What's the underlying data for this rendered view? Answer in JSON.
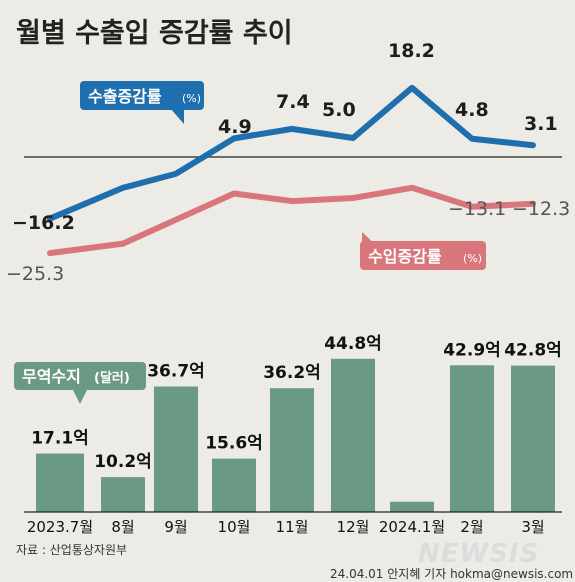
{
  "header": {
    "title": "월별 수출입 증감률 추이"
  },
  "colors": {
    "export": "#1f6fae",
    "import": "#d9767b",
    "trade": "#6a9a86",
    "export_badge": "#1f6fae",
    "import_badge": "#d9767b",
    "trade_badge": "#6a9a86"
  },
  "legend": {
    "export": {
      "label": "수출증감률",
      "unit": "(%)"
    },
    "import": {
      "label": "수입증감률",
      "unit": "(%)"
    },
    "trade": {
      "label": "무역수지",
      "unit": "(달러)"
    }
  },
  "footer": {
    "source": "자료 : 산업통상자원부",
    "credit": "24.04.01 안지혜 기자 hokma@newsis.com",
    "logo": "NEWSIS"
  },
  "chart_data": [
    {
      "type": "line",
      "categories": [
        "2023.7월",
        "8월",
        "9월",
        "10월",
        "11월",
        "12월",
        "2024.1월",
        "2월",
        "3월"
      ],
      "series": [
        {
          "name": "수출증감률",
          "unit": "%",
          "values": [
            -16.2,
            -8.1,
            -4.4,
            4.9,
            7.4,
            5.0,
            18.2,
            4.8,
            3.1
          ],
          "labels": [
            "-16.2",
            null,
            null,
            "4.9",
            "7.4",
            "5.0",
            "18.2",
            "4.8",
            "3.1"
          ]
        },
        {
          "name": "수입증감률",
          "unit": "%",
          "values": [
            -25.3,
            -22.8,
            -16.5,
            -9.6,
            -11.6,
            -10.8,
            -8.1,
            -13.1,
            -12.3
          ],
          "labels": [
            "-25.3",
            null,
            null,
            null,
            null,
            null,
            null,
            "-13.1",
            "-12.3"
          ]
        }
      ],
      "baseline": 0
    },
    {
      "type": "bar",
      "categories": [
        "2023.7월",
        "8월",
        "9월",
        "10월",
        "11월",
        "12월",
        "2024.1월",
        "2월",
        "3월"
      ],
      "series": [
        {
          "name": "무역수지",
          "unit": "억 달러",
          "values": [
            17.1,
            10.2,
            36.7,
            15.6,
            36.2,
            44.8,
            3.0,
            42.9,
            42.8
          ],
          "labels": [
            "17.1억",
            "10.2억",
            "36.7억",
            "15.6억",
            "36.2억",
            "44.8억",
            null,
            "42.9억",
            "42.8억"
          ]
        }
      ]
    }
  ]
}
